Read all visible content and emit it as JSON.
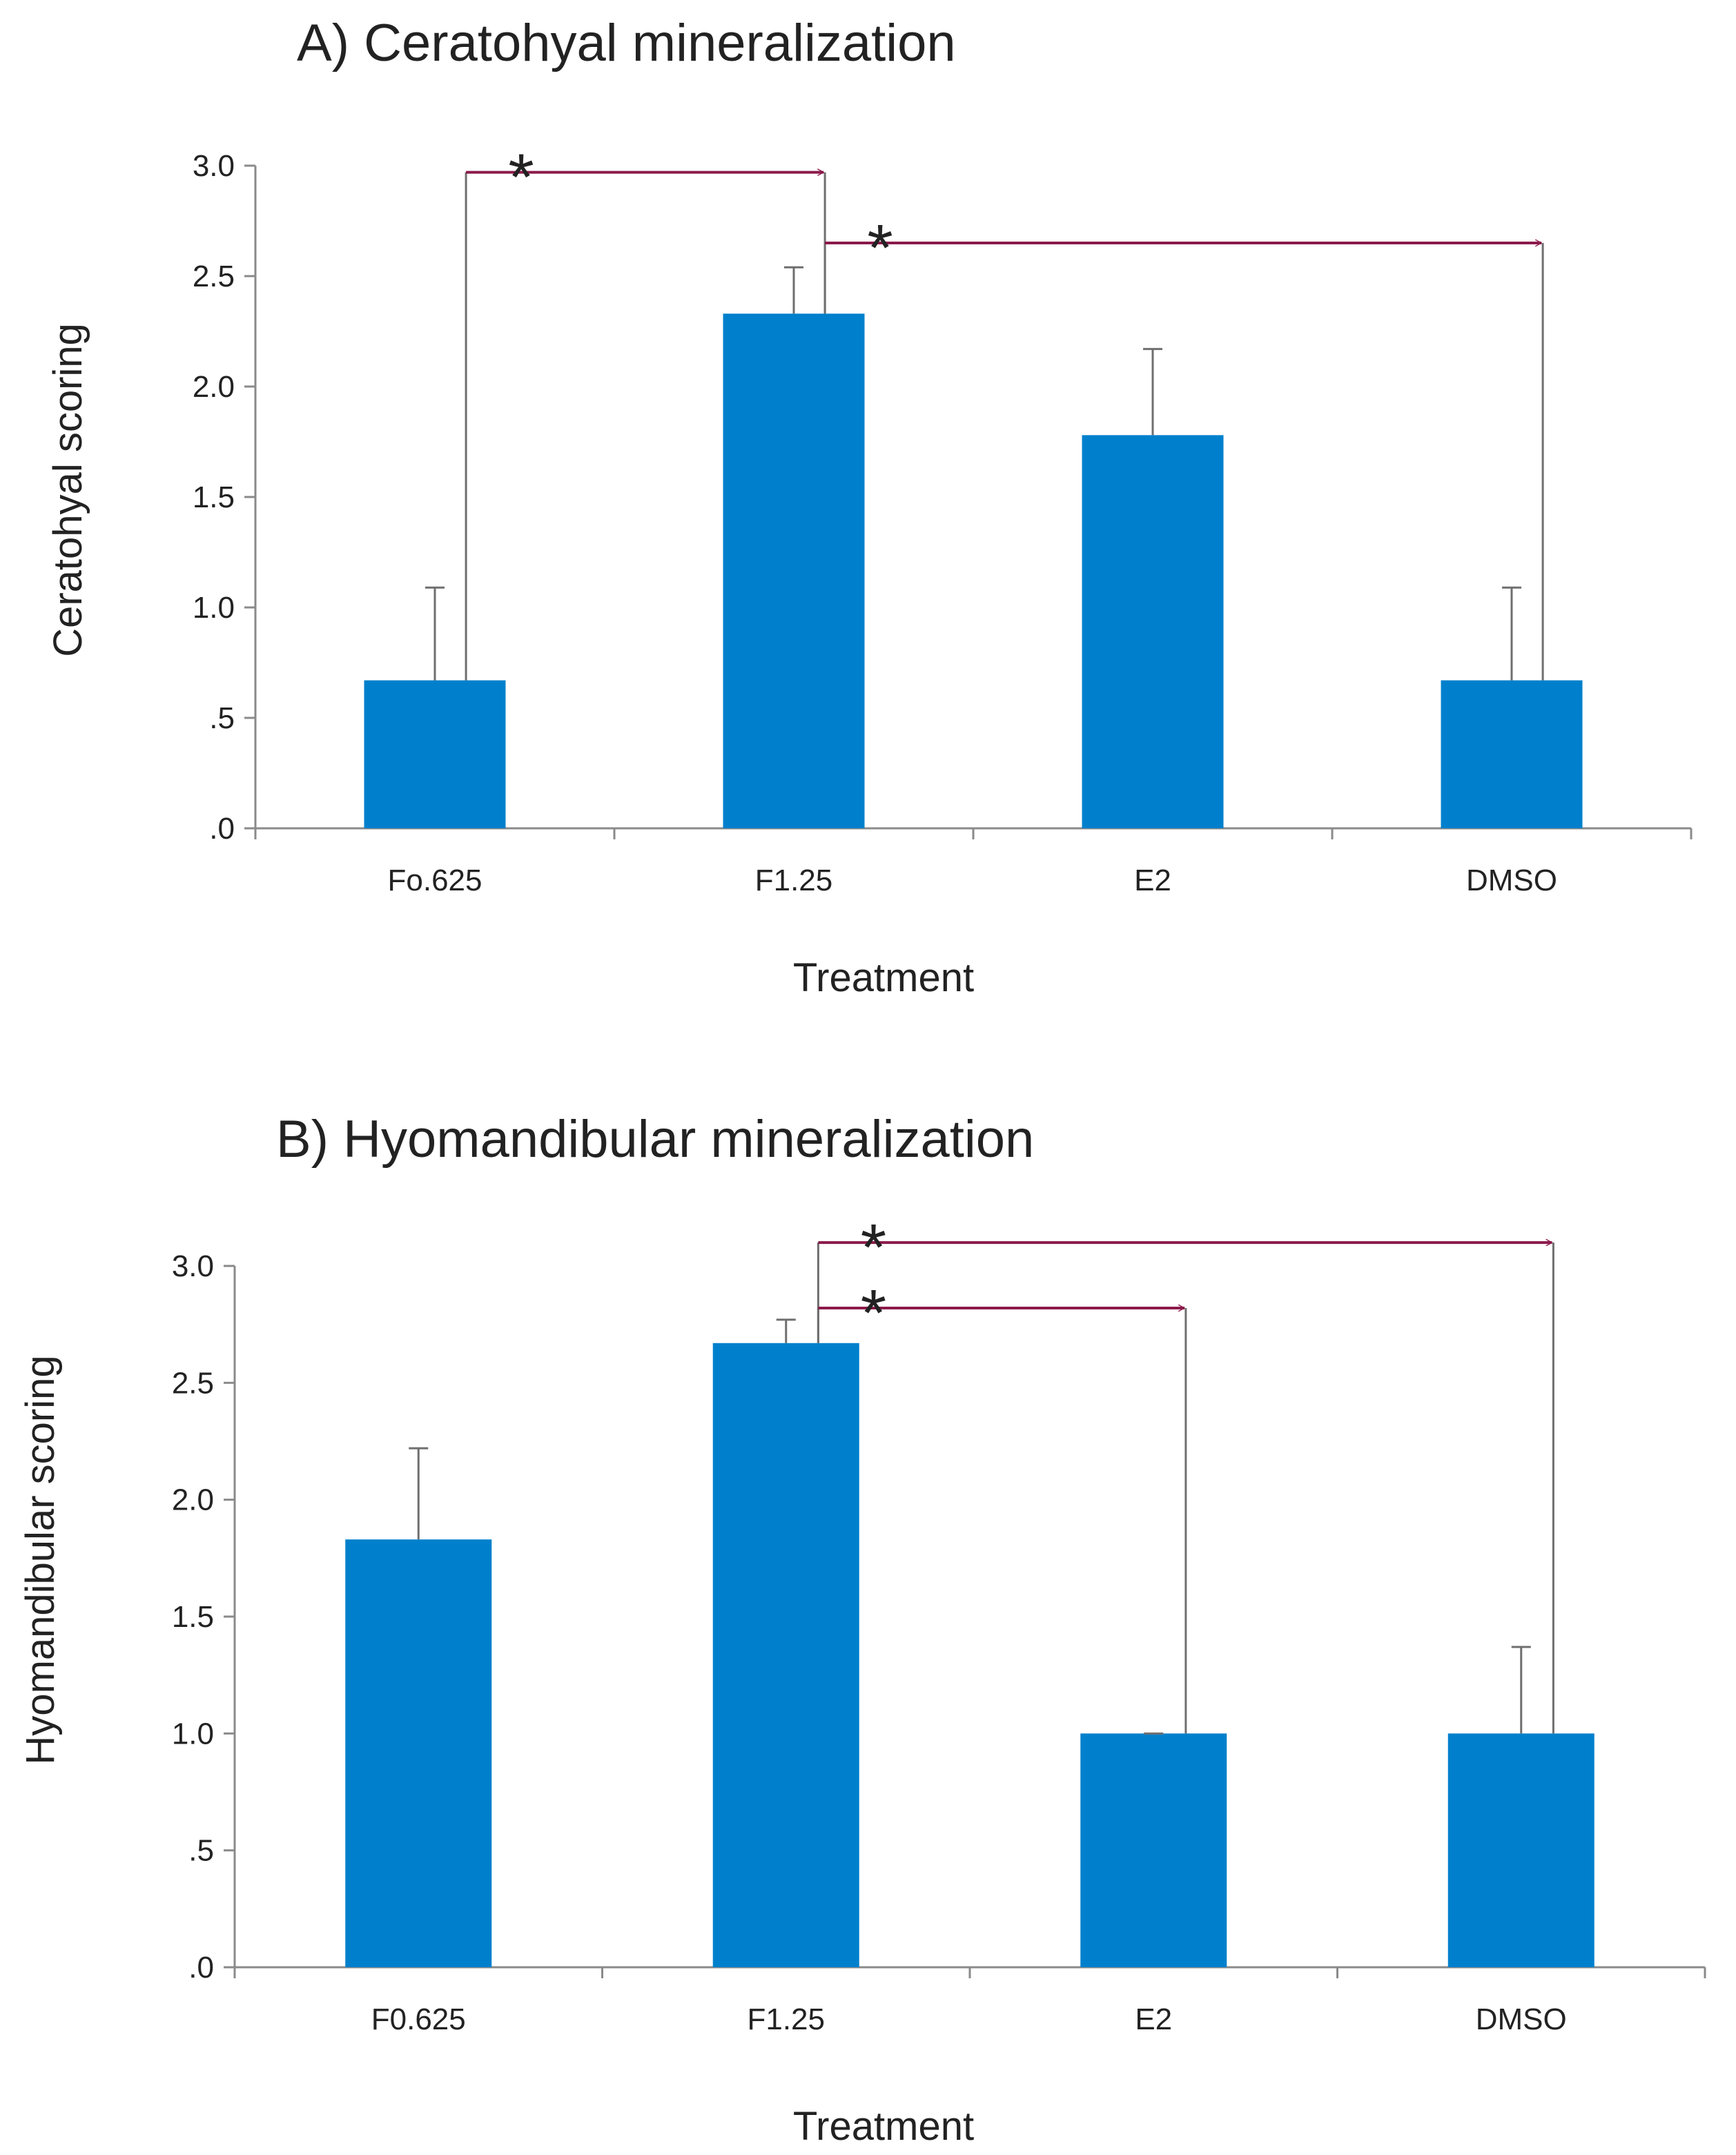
{
  "colors": {
    "bar": "#0080CC",
    "axis": "#8a8a8a",
    "error": "#6f6f6f",
    "arrow": "#8B1A4A"
  },
  "chart_data": [
    {
      "type": "bar",
      "title": "A) Ceratohyal mineralization",
      "xlabel": "Treatment",
      "ylabel": "Ceratohyal scoring",
      "categories": [
        "Fo.625",
        "F1.25",
        "E2",
        "DMSO"
      ],
      "values": [
        0.67,
        2.33,
        1.78,
        0.67
      ],
      "errors": [
        0.42,
        0.21,
        0.39,
        0.42
      ],
      "ylim": [
        0,
        3.0
      ],
      "yticks": [
        0,
        0.5,
        1.0,
        1.5,
        2.0,
        2.5,
        3.0
      ],
      "ytick_labels": [
        ".0",
        ".5",
        "1.0",
        "1.5",
        "2.0",
        "2.5",
        "3.0"
      ],
      "significance": [
        {
          "from": 0,
          "to": 1,
          "label": "*",
          "level": 2.97
        },
        {
          "from": 1,
          "to": 3,
          "label": "*",
          "level": 2.65
        }
      ]
    },
    {
      "type": "bar",
      "title": "B) Hyomandibular mineralization",
      "xlabel": "Treatment",
      "ylabel": "Hyomandibular scoring",
      "categories": [
        "F0.625",
        "F1.25",
        "E2",
        "DMSO"
      ],
      "values": [
        1.83,
        2.67,
        1.0,
        1.0
      ],
      "errors": [
        0.39,
        0.1,
        0.0,
        0.37
      ],
      "ylim": [
        0,
        3.0
      ],
      "yticks": [
        0,
        0.5,
        1.0,
        1.5,
        2.0,
        2.5,
        3.0
      ],
      "ytick_labels": [
        ".0",
        ".5",
        "1.0",
        "1.5",
        "2.0",
        "2.5",
        "3.0"
      ],
      "significance": [
        {
          "from": 1,
          "to": 3,
          "label": "*",
          "level": 3.1
        },
        {
          "from": 1,
          "to": 2,
          "label": "*",
          "level": 2.82
        }
      ]
    }
  ]
}
